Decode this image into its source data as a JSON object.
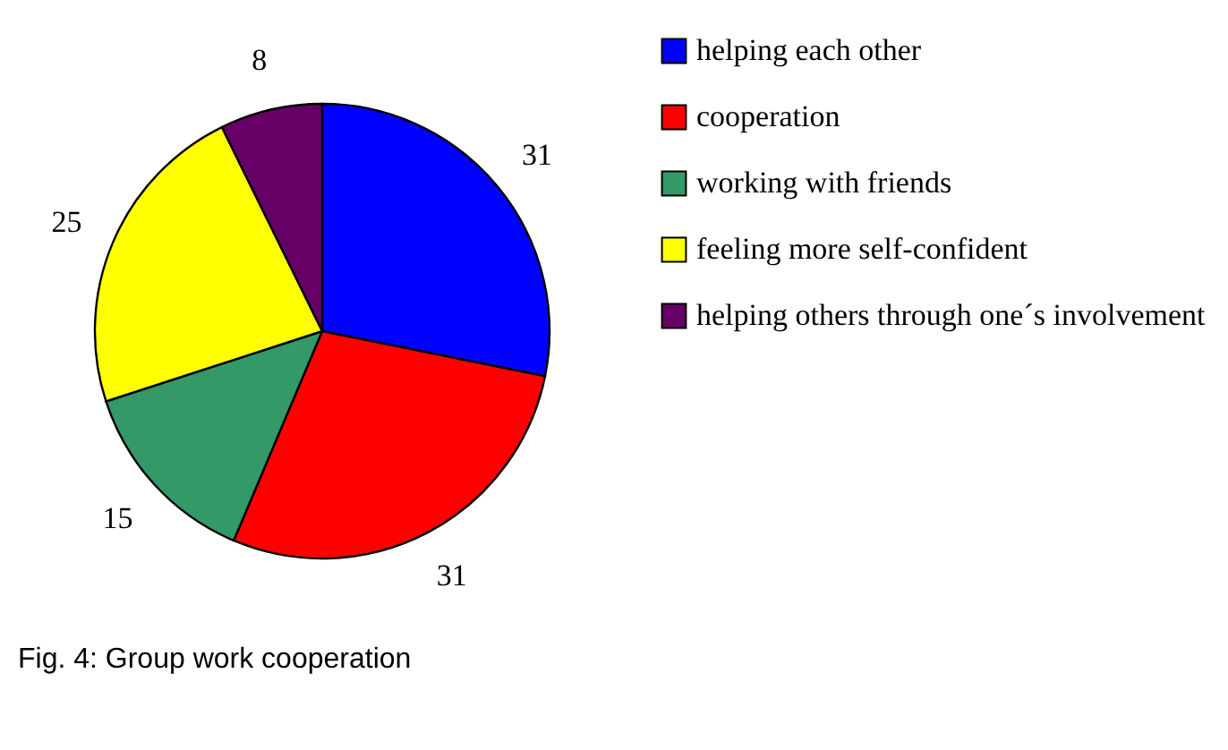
{
  "chart_data": {
    "type": "pie",
    "categories": [
      "helping each other",
      "cooperation",
      "working with friends",
      "feeling more self-confident",
      "helping others through one´s involvement"
    ],
    "values": [
      31,
      31,
      15,
      25,
      8
    ],
    "colors": [
      "#0000ff",
      "#ff0000",
      "#339966",
      "#ffff00",
      "#660066"
    ],
    "data_labels": true,
    "legend": "right",
    "annotations": [
      "Fig. 4: Group work cooperation"
    ]
  }
}
